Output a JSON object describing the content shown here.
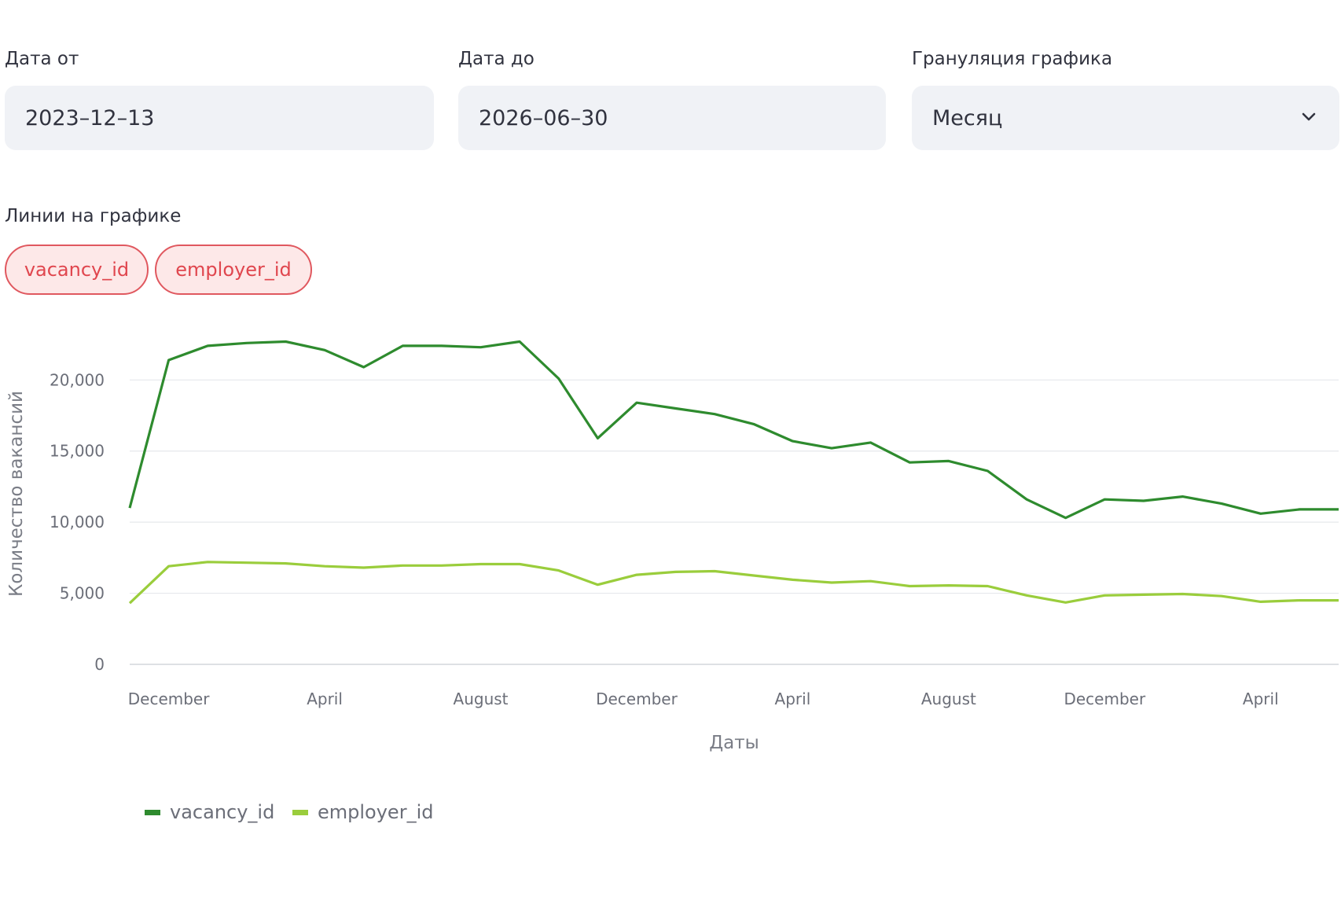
{
  "filters": {
    "date_from": {
      "label": "Дата от",
      "value": "2023–12–13"
    },
    "date_to": {
      "label": "Дата до",
      "value": "2026–06–30"
    },
    "granularity": {
      "label": "Грануляция графика",
      "value": "Месяц"
    }
  },
  "lines": {
    "label": "Линии на графике",
    "chips": [
      "vacancy_id",
      "employer_id"
    ]
  },
  "colors": {
    "vacancy": "#2e8b2e",
    "employer": "#9acd3c",
    "chip_text": "#e0464e",
    "chip_bg": "#fde8e8"
  },
  "chart_data": {
    "type": "line",
    "x": [
      "2023-11",
      "2023-12",
      "2024-01",
      "2024-02",
      "2024-03",
      "2024-04",
      "2024-05",
      "2024-06",
      "2024-07",
      "2024-08",
      "2024-09",
      "2024-10",
      "2024-11",
      "2024-12",
      "2025-01",
      "2025-02",
      "2025-03",
      "2025-04",
      "2025-05",
      "2025-06",
      "2025-07",
      "2025-08",
      "2025-09",
      "2025-10",
      "2025-11",
      "2025-12",
      "2026-01",
      "2026-02",
      "2026-03",
      "2026-04",
      "2026-05",
      "2026-06"
    ],
    "x_tick_labels": [
      "December",
      "April",
      "August",
      "December",
      "April",
      "August",
      "December",
      "April"
    ],
    "x_tick_positions": [
      "2023-12",
      "2024-04",
      "2024-08",
      "2024-12",
      "2025-04",
      "2025-08",
      "2025-12",
      "2026-04"
    ],
    "series": [
      {
        "name": "vacancy_id",
        "color": "#2e8b2e",
        "values": [
          11000,
          21400,
          22400,
          22600,
          22700,
          22100,
          20900,
          22400,
          22400,
          22300,
          22700,
          20100,
          15900,
          18400,
          18000,
          17600,
          16900,
          15700,
          15200,
          15600,
          14200,
          14300,
          13600,
          11600,
          10300,
          11600,
          11500,
          11800,
          11300,
          10600,
          10900,
          10900
        ]
      },
      {
        "name": "employer_id",
        "color": "#9acd3c",
        "values": [
          4300,
          6900,
          7200,
          7150,
          7100,
          6900,
          6800,
          6950,
          6950,
          7050,
          7050,
          6600,
          5600,
          6300,
          6500,
          6550,
          6250,
          5950,
          5750,
          5850,
          5500,
          5550,
          5500,
          4850,
          4350,
          4850,
          4900,
          4950,
          4800,
          4400,
          4500,
          4500
        ]
      }
    ],
    "y_ticks": [
      "0",
      "5,000",
      "10,000",
      "15,000",
      "20,000"
    ],
    "y_tick_values": [
      0,
      5000,
      10000,
      15000,
      20000
    ],
    "ylim": [
      0,
      23500
    ],
    "xlabel": "Даты",
    "ylabel": "Количество вакансий",
    "grid": true,
    "legend": "bottom-left"
  }
}
